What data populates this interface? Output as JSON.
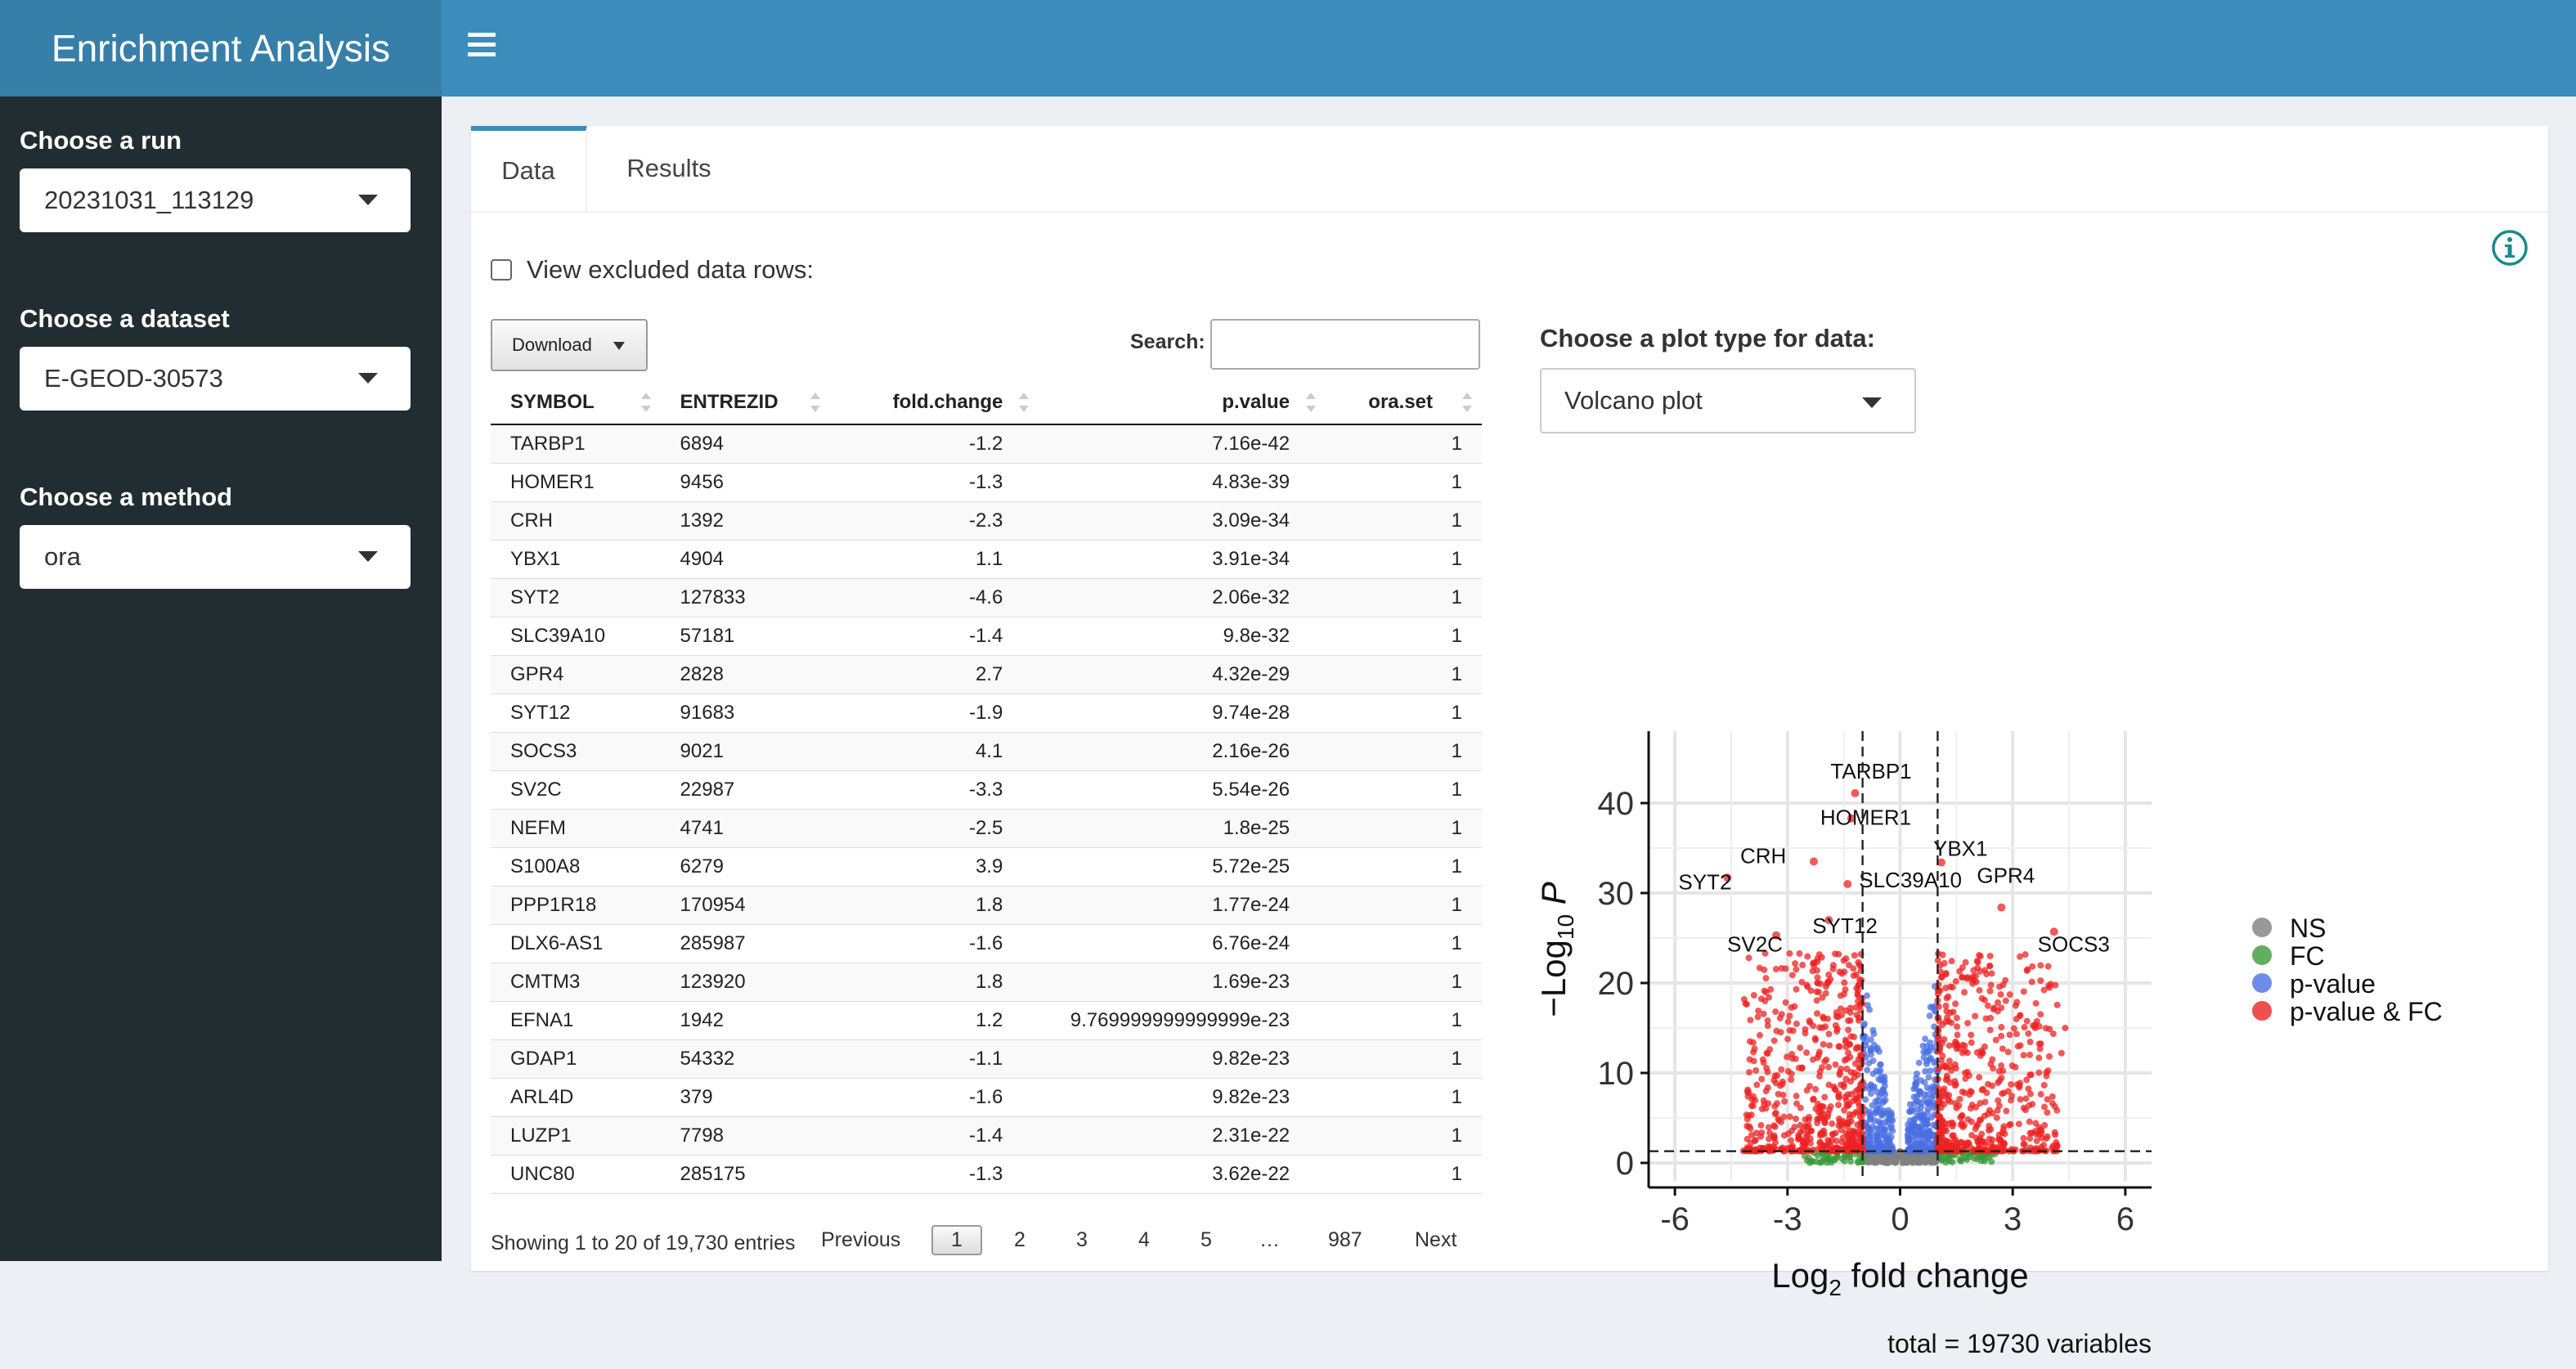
{
  "app": {
    "title": "Enrichment Analysis"
  },
  "sidebar": {
    "run": {
      "label": "Choose a run",
      "value": "20231031_113129"
    },
    "dataset": {
      "label": "Choose a dataset",
      "value": "E-GEOD-30573"
    },
    "method": {
      "label": "Choose a method",
      "value": "ora"
    }
  },
  "tabs": [
    {
      "label": "Data",
      "active": true
    },
    {
      "label": "Results",
      "active": false
    }
  ],
  "data_tab": {
    "view_excluded_label": "View excluded data rows:",
    "download_label": "Download",
    "search_label": "Search:",
    "search_value": "",
    "columns": [
      "SYMBOL",
      "ENTREZID",
      "fold.change",
      "p.value",
      "ora.set"
    ],
    "rows": [
      [
        "TARBP1",
        "6894",
        "-1.2",
        "7.16e-42",
        "1"
      ],
      [
        "HOMER1",
        "9456",
        "-1.3",
        "4.83e-39",
        "1"
      ],
      [
        "CRH",
        "1392",
        "-2.3",
        "3.09e-34",
        "1"
      ],
      [
        "YBX1",
        "4904",
        "1.1",
        "3.91e-34",
        "1"
      ],
      [
        "SYT2",
        "127833",
        "-4.6",
        "2.06e-32",
        "1"
      ],
      [
        "SLC39A10",
        "57181",
        "-1.4",
        "9.8e-32",
        "1"
      ],
      [
        "GPR4",
        "2828",
        "2.7",
        "4.32e-29",
        "1"
      ],
      [
        "SYT12",
        "91683",
        "-1.9",
        "9.74e-28",
        "1"
      ],
      [
        "SOCS3",
        "9021",
        "4.1",
        "2.16e-26",
        "1"
      ],
      [
        "SV2C",
        "22987",
        "-3.3",
        "5.54e-26",
        "1"
      ],
      [
        "NEFM",
        "4741",
        "-2.5",
        "1.8e-25",
        "1"
      ],
      [
        "S100A8",
        "6279",
        "3.9",
        "5.72e-25",
        "1"
      ],
      [
        "PPP1R18",
        "170954",
        "1.8",
        "1.77e-24",
        "1"
      ],
      [
        "DLX6-AS1",
        "285987",
        "-1.6",
        "6.76e-24",
        "1"
      ],
      [
        "CMTM3",
        "123920",
        "1.8",
        "1.69e-23",
        "1"
      ],
      [
        "EFNA1",
        "1942",
        "1.2",
        "9.769999999999999e-23",
        "1"
      ],
      [
        "GDAP1",
        "54332",
        "-1.1",
        "9.82e-23",
        "1"
      ],
      [
        "ARL4D",
        "379",
        "-1.6",
        "9.82e-23",
        "1"
      ],
      [
        "LUZP1",
        "7798",
        "-1.4",
        "2.31e-22",
        "1"
      ],
      [
        "UNC80",
        "285175",
        "-1.3",
        "3.62e-22",
        "1"
      ]
    ],
    "info": "Showing 1 to 20 of 19,730 entries",
    "pagination": {
      "previous": "Previous",
      "pages": [
        "1",
        "2",
        "3",
        "4",
        "5"
      ],
      "ellipsis": "…",
      "last": "987",
      "next": "Next",
      "current": "1"
    }
  },
  "plot": {
    "type_label": "Choose a plot type for data:",
    "type_value": "Volcano plot"
  },
  "chart_data": {
    "type": "scatter",
    "xlabel_main": "Log",
    "xlabel_sub": "2",
    "xlabel_rest": " fold change",
    "ylabel_main": "−Log",
    "ylabel_sub": "10",
    "ylabel_p": "P",
    "x_ticks": [
      "-6",
      "-3",
      "0",
      "3",
      "6"
    ],
    "x_tick_values": [
      -6,
      -3,
      0,
      3,
      6
    ],
    "y_ticks": [
      "0",
      "10",
      "20",
      "30",
      "40"
    ],
    "y_tick_values": [
      0,
      10,
      20,
      30,
      40
    ],
    "xlim": [
      -6.7,
      6.7
    ],
    "ylim": [
      -2,
      48
    ],
    "fc_cutoff": 1,
    "p_cutoff_neglog10": 1.3,
    "caption": "total = 19730 variables",
    "legend": [
      {
        "name": "NS",
        "color": "#808080"
      },
      {
        "name": "FC",
        "color": "#3a9a3a"
      },
      {
        "name": "p-value",
        "color": "#4a6fe3"
      },
      {
        "name": "p-value & FC",
        "color": "#ee2222"
      }
    ],
    "labeled_points": [
      {
        "label": "TARBP1",
        "x": -1.2,
        "y": 41.1
      },
      {
        "label": "HOMER1",
        "x": -1.3,
        "y": 38.3
      },
      {
        "label": "CRH",
        "x": -2.3,
        "y": 33.5
      },
      {
        "label": "YBX1",
        "x": 1.1,
        "y": 33.4
      },
      {
        "label": "SYT2",
        "x": -4.6,
        "y": 31.7
      },
      {
        "label": "SLC39A10",
        "x": -1.4,
        "y": 31.0
      },
      {
        "label": "GPR4",
        "x": 2.7,
        "y": 28.4
      },
      {
        "label": "SYT12",
        "x": -1.9,
        "y": 27.0
      },
      {
        "label": "SOCS3",
        "x": 4.1,
        "y": 25.7
      },
      {
        "label": "SV2C",
        "x": -3.3,
        "y": 25.3
      }
    ]
  }
}
